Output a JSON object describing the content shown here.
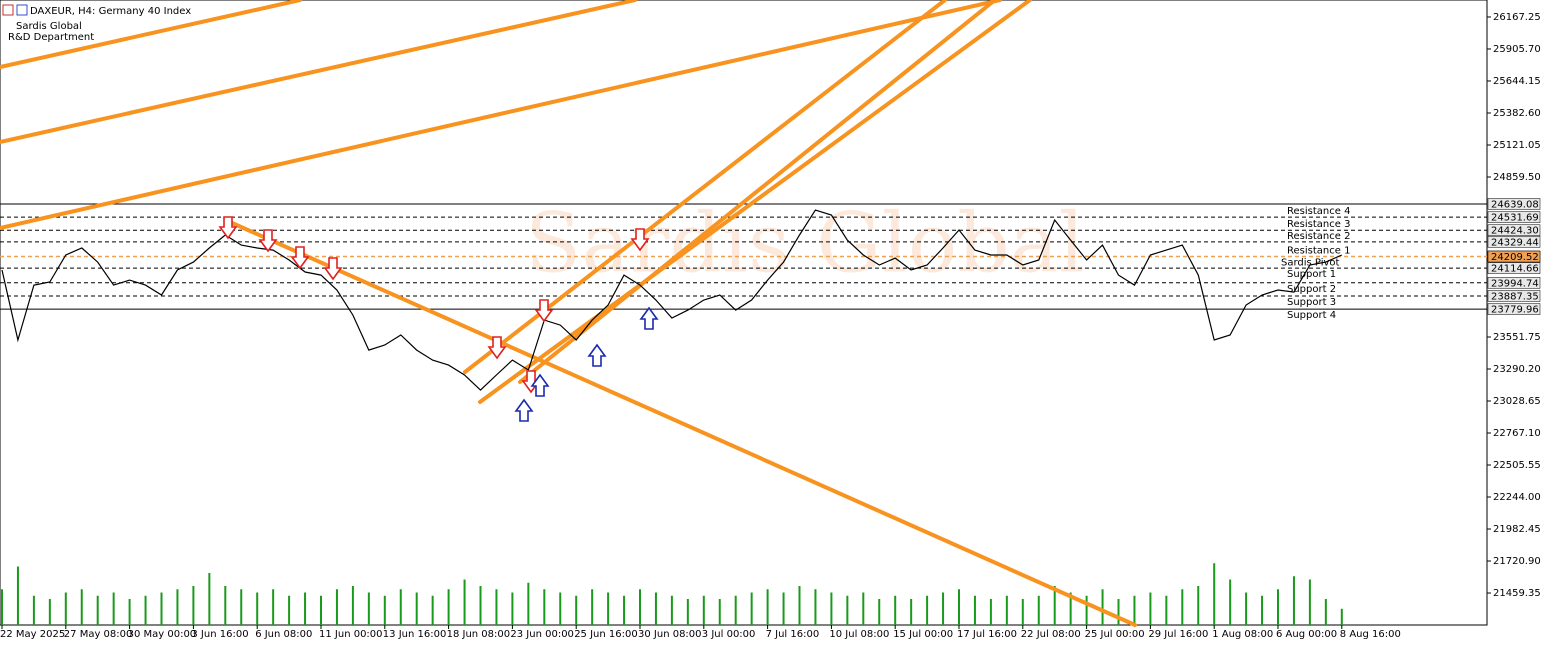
{
  "header": {
    "symbol": "DAXEUR, H4:  Germany 40 Index",
    "company": "Sardis Global",
    "department": "R&D Department"
  },
  "chart_data": {
    "type": "line",
    "watermark": "Sardis Global",
    "color": "#000000",
    "categories": [
      "22 May 2025",
      null,
      null,
      null,
      "27 May 08:00",
      null,
      null,
      null,
      "30 May 00:00",
      null,
      null,
      null,
      "3 Jun 16:00",
      null,
      null,
      null,
      "6 Jun 08:00",
      null,
      null,
      null,
      "11 Jun 00:00",
      null,
      null,
      null,
      "13 Jun 16:00",
      null,
      null,
      null,
      "18 Jun 08:00",
      null,
      null,
      null,
      "23 Jun 00:00",
      null,
      null,
      null,
      "25 Jun 16:00",
      null,
      null,
      null,
      "30 Jun 08:00",
      null,
      null,
      null,
      "3 Jul 00:00",
      null,
      null,
      null,
      "7 Jul 16:00",
      null,
      null,
      null,
      "10 Jul 08:00",
      null,
      null,
      null,
      "15 Jul 00:00",
      null,
      null,
      null,
      "17 Jul 16:00",
      null,
      null,
      null,
      "22 Jul 08:00",
      null,
      null,
      null,
      "25 Jul 00:00",
      null,
      null,
      null,
      "29 Jul 16:00",
      null,
      null,
      null,
      "1 Aug 08:00",
      null,
      null,
      null,
      "6 Aug 00:00",
      null,
      null,
      null,
      "8 Aug 16:00"
    ],
    "values": [
      24099,
      23527,
      23976,
      24001,
      24222,
      24279,
      24164,
      23976,
      24017,
      23976,
      23895,
      24099,
      24164,
      24279,
      24385,
      24303,
      24279,
      24262,
      24181,
      24083,
      24058,
      23936,
      23731,
      23445,
      23486,
      23568,
      23445,
      23363,
      23322,
      23241,
      23118,
      23241,
      23363,
      23282,
      23690,
      23649,
      23527,
      23690,
      23813,
      24058,
      23976,
      23854,
      23707,
      23772,
      23854,
      23895,
      23772,
      23854,
      24017,
      24164,
      24385,
      24589,
      24549,
      24344,
      24222,
      24140,
      24197,
      24099,
      24140,
      24279,
      24426,
      24262,
      24222,
      24222,
      24140,
      24181,
      24508,
      24344,
      24181,
      24303,
      24058,
      23976,
      24222,
      24262,
      24303,
      24058,
      23527,
      23568,
      23813,
      23895,
      23936,
      23919,
      24140,
      24164,
      24222
    ],
    "volume": [
      55,
      90,
      45,
      40,
      50,
      55,
      45,
      50,
      40,
      45,
      50,
      55,
      60,
      80,
      60,
      55,
      50,
      55,
      45,
      50,
      45,
      55,
      60,
      50,
      45,
      55,
      50,
      45,
      55,
      70,
      60,
      55,
      50,
      65,
      55,
      50,
      45,
      55,
      50,
      45,
      55,
      50,
      45,
      40,
      45,
      40,
      45,
      50,
      55,
      50,
      60,
      55,
      50,
      45,
      50,
      40,
      45,
      40,
      45,
      50,
      55,
      45,
      40,
      45,
      40,
      45,
      60,
      50,
      45,
      55,
      40,
      45,
      50,
      45,
      55,
      60,
      95,
      70,
      50,
      45,
      55,
      75,
      70,
      40,
      25
    ],
    "volume_color": "#1a9a1a",
    "volume_lim": [
      0,
      100
    ],
    "ylim": [
      21198,
      26306
    ],
    "yticks": [
      26167.25,
      {
        "value": 25905.7,
        "label": "25905.70"
      },
      25644.15,
      {
        "value": 25382.6,
        "label": "25382.60"
      },
      25121.05,
      {
        "value": 24859.5,
        "label": "24859.50"
      },
      23551.75,
      {
        "value": 23290.2,
        "label": "23290.20"
      },
      23028.65,
      {
        "value": 22767.1,
        "label": "22767.10"
      },
      22505.55,
      {
        "value": 22244,
        "label": "22244.00"
      },
      21982.45,
      {
        "value": 21720.9,
        "label": "21720.90"
      },
      21459.35
    ],
    "grid": false,
    "levels": [
      {
        "value": 24639.08,
        "kind": "range",
        "dash": false,
        "color": "#000000"
      },
      {
        "name": "Resistance 4",
        "value": 24531.69,
        "kind": "resistance",
        "dash": true,
        "color": "#000000"
      },
      {
        "name": "Resistance 3",
        "value": 24424.3,
        "value_label": "24424.30",
        "kind": "resistance",
        "dash": true,
        "color": "#000000"
      },
      {
        "name": "Resistance 2",
        "value": 24329.44,
        "kind": "resistance",
        "dash": true,
        "color": "#000000"
      },
      {
        "name": "Resistance 1",
        "value": 24209.52,
        "kind": "resistance",
        "dash": true,
        "color": "#000000"
      },
      {
        "name": "Support 1",
        "value": 24114.66,
        "kind": "support",
        "dash": true,
        "color": "#000000"
      },
      {
        "name": "Support 2",
        "value": 23994.74,
        "kind": "support",
        "dash": true,
        "color": "#000000"
      },
      {
        "name": "Support 3",
        "value": 23887.35,
        "kind": "support",
        "dash": true,
        "color": "#000000"
      },
      {
        "name": "Support 4",
        "value": 23779.96,
        "kind": "support",
        "dash": false,
        "color": "#000000"
      },
      {
        "name": "Sardis Pivot",
        "value": 24209.52,
        "kind": "pivot",
        "dash": true,
        "color": "#f0a050"
      }
    ]
  }
}
